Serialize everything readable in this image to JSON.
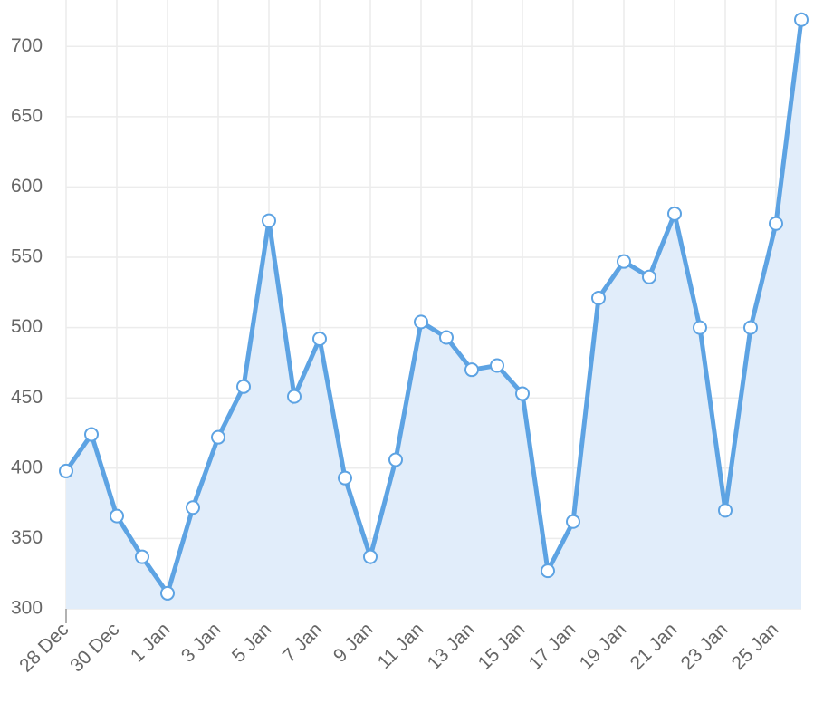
{
  "chart_data": {
    "type": "line",
    "area": true,
    "grid": true,
    "categories": [
      "28 Dec",
      null,
      "30 Dec",
      null,
      "1 Jan",
      null,
      "3 Jan",
      null,
      "5 Jan",
      null,
      "7 Jan",
      null,
      "9 Jan",
      null,
      "11 Jan",
      null,
      "13 Jan",
      null,
      "15 Jan",
      null,
      "17 Jan",
      null,
      "19 Jan",
      null,
      "21 Jan",
      null,
      "23 Jan",
      null,
      "25 Jan",
      null
    ],
    "values": [
      398,
      424,
      366,
      337,
      311,
      372,
      422,
      458,
      576,
      451,
      492,
      393,
      337,
      406,
      504,
      493,
      470,
      473,
      453,
      327,
      362,
      521,
      547,
      536,
      581,
      500,
      370,
      500,
      574,
      719
    ],
    "color": "#5da3e3",
    "fill_color": "#e1edfa",
    "ylim": [
      300,
      733
    ],
    "yticks": [
      300,
      350,
      400,
      450,
      500,
      550,
      600,
      650,
      700
    ]
  }
}
